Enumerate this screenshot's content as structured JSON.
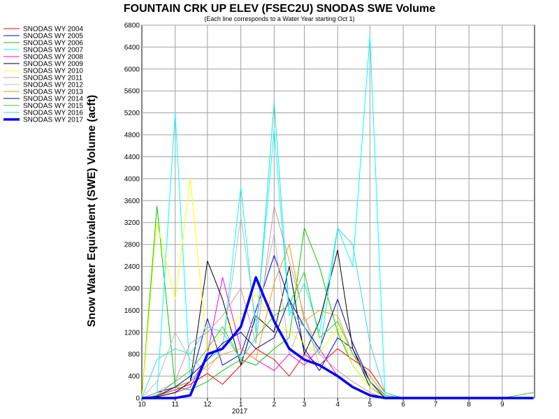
{
  "chart_data": {
    "type": "line",
    "title": "FOUNTAIN CRK UP ELEV (FSEC2U) SNODAS SWE Volume",
    "subtitle": "(Each line corresponds to a Water Year starting Oct 1)",
    "ylabel": "Snow Water Equivalent (SWE) Volume (acft)",
    "xlabel": "",
    "year_label": "2017",
    "ylim": [
      0,
      6800
    ],
    "yticks": [
      0,
      400,
      800,
      1200,
      1600,
      2000,
      2400,
      2800,
      3200,
      3600,
      4000,
      4400,
      4800,
      5200,
      5600,
      6000,
      6400,
      6800
    ],
    "xlim": [
      "2016-10-01",
      "2017-10-01"
    ],
    "x_month_labels": [
      "10",
      "11",
      "12",
      "1",
      "2",
      "3",
      "4",
      "5",
      "6",
      "7",
      "8",
      "9"
    ],
    "grid": true,
    "legend_position": "left",
    "x": [
      "2016-10-01",
      "2016-10-15",
      "2016-11-01",
      "2016-11-15",
      "2016-12-01",
      "2016-12-15",
      "2017-01-01",
      "2017-01-15",
      "2017-02-01",
      "2017-02-15",
      "2017-03-01",
      "2017-03-15",
      "2017-04-01",
      "2017-04-15",
      "2017-05-01",
      "2017-05-15",
      "2017-06-01",
      "2017-07-01",
      "2017-08-01",
      "2017-09-01",
      "2017-09-30"
    ],
    "series": [
      {
        "name": "SNODAS WY 2004",
        "color": "#ff0000",
        "values": [
          0,
          40,
          150,
          250,
          450,
          250,
          600,
          900,
          700,
          400,
          800,
          600,
          900,
          700,
          500,
          100,
          0,
          0,
          0,
          0,
          0
        ]
      },
      {
        "name": "SNODAS WY 2005",
        "color": "#0000ff",
        "values": [
          0,
          100,
          200,
          300,
          1450,
          600,
          800,
          1600,
          2600,
          1800,
          900,
          500,
          1100,
          900,
          300,
          50,
          0,
          0,
          0,
          0,
          0
        ]
      },
      {
        "name": "SNODAS WY 2006",
        "color": "#00cc00",
        "values": [
          0,
          3500,
          200,
          150,
          300,
          500,
          700,
          600,
          900,
          1100,
          3100,
          2400,
          1200,
          600,
          200,
          20,
          0,
          0,
          0,
          0,
          0
        ]
      },
      {
        "name": "SNODAS WY 2007",
        "color": "#00ffff",
        "values": [
          0,
          50,
          5200,
          300,
          700,
          900,
          3850,
          1200,
          4900,
          1500,
          2100,
          1200,
          3100,
          2400,
          6600,
          50,
          0,
          0,
          0,
          0,
          0
        ]
      },
      {
        "name": "SNODAS WY 2008",
        "color": "#ff00ff",
        "values": [
          0,
          20,
          100,
          200,
          800,
          2200,
          900,
          700,
          500,
          800,
          600,
          900,
          400,
          200,
          50,
          0,
          0,
          0,
          0,
          0,
          0
        ]
      },
      {
        "name": "SNODAS WY 2009",
        "color": "#000000",
        "values": [
          0,
          20,
          100,
          300,
          2500,
          1800,
          600,
          1500,
          1200,
          2400,
          800,
          1400,
          2700,
          900,
          200,
          0,
          0,
          0,
          0,
          0,
          0
        ]
      },
      {
        "name": "SNODAS WY 2010",
        "color": "#ffff00",
        "values": [
          0,
          3200,
          1800,
          4000,
          800,
          1200,
          1500,
          1900,
          1400,
          1200,
          1000,
          800,
          1300,
          600,
          200,
          0,
          0,
          0,
          0,
          0,
          0
        ]
      },
      {
        "name": "SNODAS WY 2011",
        "color": "#cc9999",
        "values": [
          0,
          100,
          300,
          1000,
          1200,
          1500,
          2000,
          1000,
          3500,
          2500,
          1500,
          800,
          500,
          300,
          100,
          0,
          0,
          0,
          0,
          0,
          0
        ]
      },
      {
        "name": "SNODAS WY 2012",
        "color": "#bbbbbb",
        "values": [
          0,
          300,
          1200,
          700,
          500,
          900,
          3300,
          1400,
          3000,
          800,
          1500,
          600,
          400,
          200,
          50,
          0,
          0,
          0,
          0,
          0,
          0
        ]
      },
      {
        "name": "SNODAS WY 2013",
        "color": "#ff9900",
        "values": [
          0,
          50,
          200,
          300,
          600,
          800,
          900,
          700,
          2100,
          2800,
          1400,
          1600,
          1500,
          800,
          400,
          50,
          0,
          0,
          0,
          0,
          0
        ]
      },
      {
        "name": "SNODAS WY 2014",
        "color": "#000099",
        "values": [
          0,
          30,
          200,
          400,
          700,
          1000,
          1200,
          900,
          1100,
          1800,
          1300,
          900,
          1800,
          1000,
          300,
          0,
          0,
          0,
          0,
          0,
          0
        ]
      },
      {
        "name": "SNODAS WY 2015",
        "color": "#33cc33",
        "values": [
          0,
          50,
          300,
          500,
          900,
          1300,
          700,
          1100,
          1500,
          1700,
          2300,
          1100,
          1400,
          800,
          300,
          50,
          0,
          0,
          0,
          0,
          100
        ]
      },
      {
        "name": "SNODAS WY 2016",
        "color": "#33dddd",
        "values": [
          0,
          700,
          900,
          800,
          1300,
          1200,
          700,
          1100,
          5400,
          1600,
          1300,
          800,
          3100,
          2800,
          1000,
          100,
          0,
          0,
          0,
          0,
          0
        ]
      },
      {
        "name": "SNODAS WY 2017",
        "color": "#0000ff",
        "values": [
          0,
          0,
          0,
          50,
          800,
          900,
          1300,
          2200,
          1400,
          900,
          700,
          600,
          400,
          200,
          50,
          0,
          0,
          0,
          0,
          0,
          0
        ]
      }
    ]
  }
}
